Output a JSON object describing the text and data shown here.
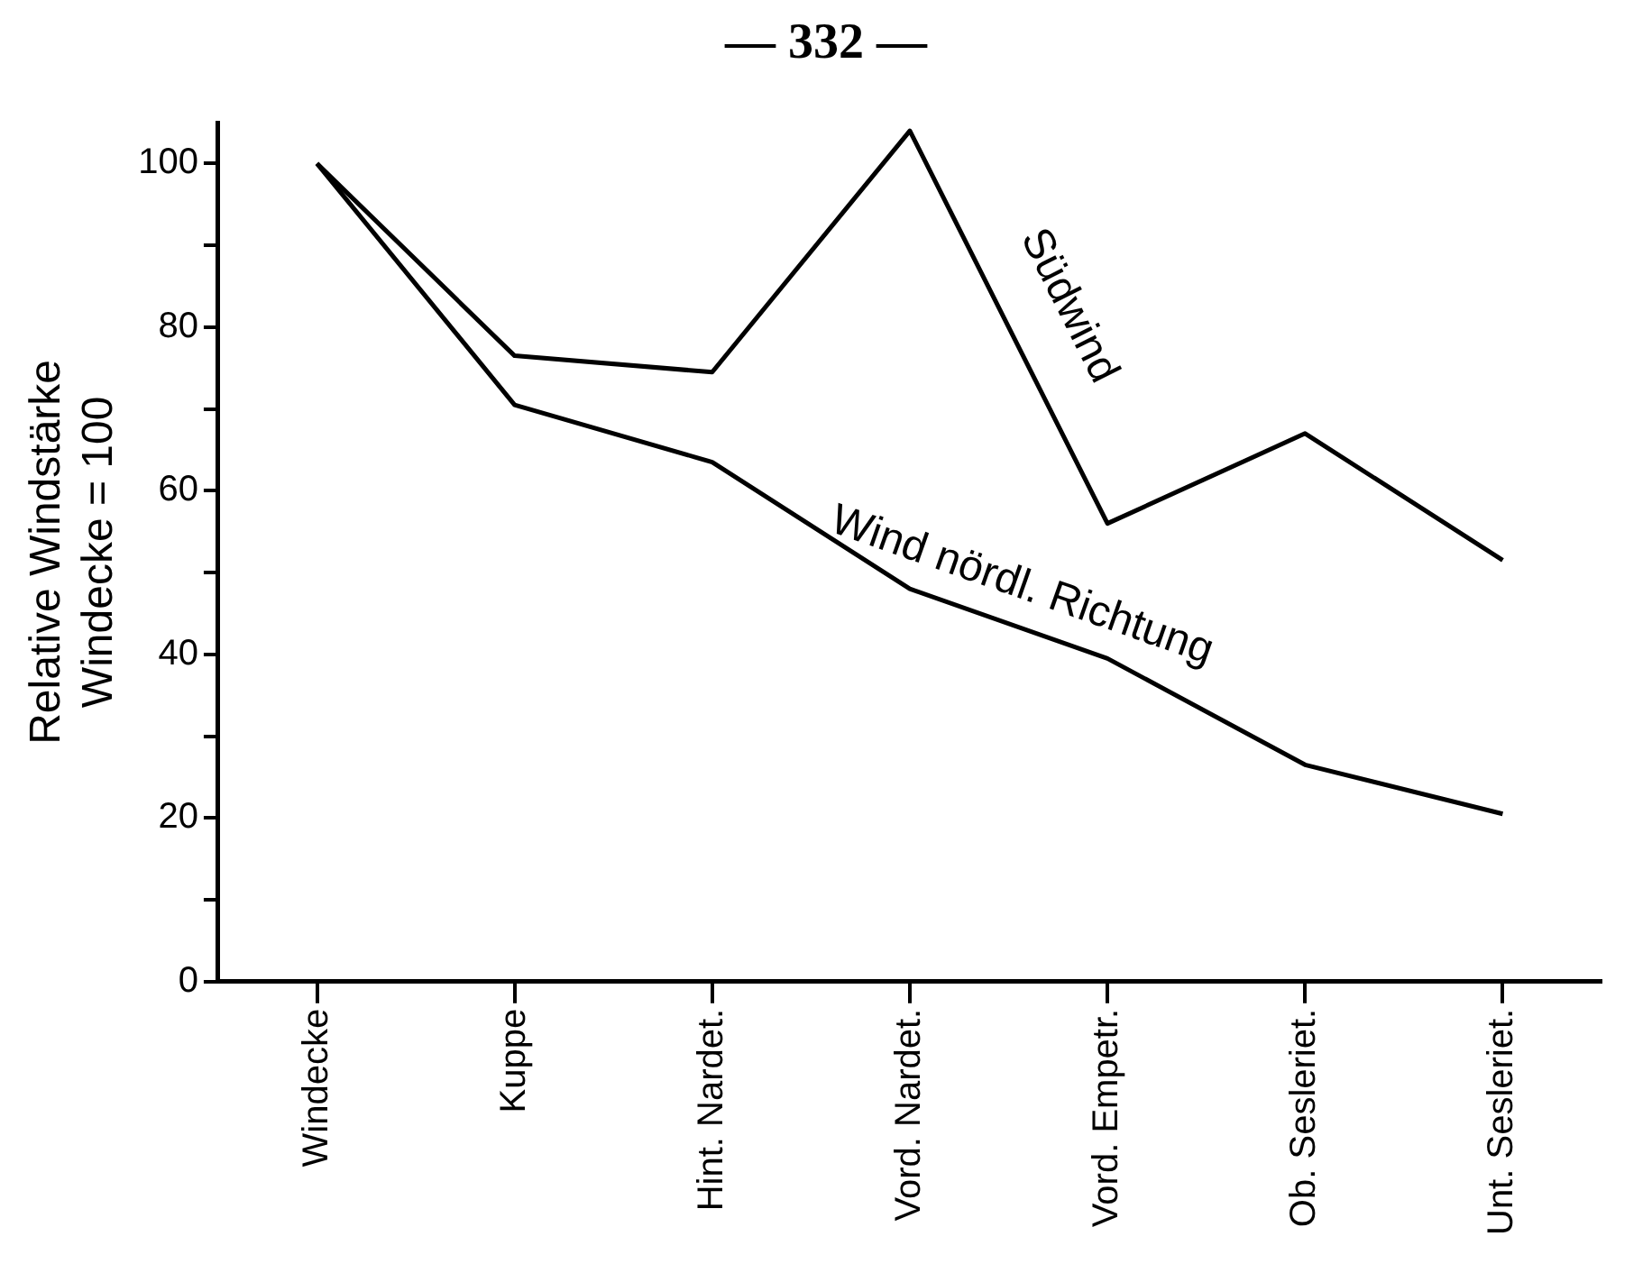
{
  "chart_data": {
    "type": "line",
    "ylabel": "Relative Windstärke\nWindecke = 100",
    "annotations": [
      "— 332 —"
    ],
    "categories": [
      "Windecke",
      "Kuppe",
      "Hint. Nardet.",
      "Vord. Nardet.",
      "Vord. Empetr.",
      "Ob. Sesleriet.",
      "Unt. Sesleriet."
    ],
    "series": [
      {
        "name": "Südwind",
        "color": "#000000",
        "values": [
          100,
          76.5,
          74.5,
          104,
          56,
          67,
          51.5
        ]
      },
      {
        "name": "Wind nördl. Richtung",
        "color": "#000000",
        "values": [
          100,
          70.5,
          63.5,
          48,
          39.5,
          26.5,
          20.5
        ]
      }
    ],
    "ylim": [
      0,
      105
    ],
    "yticks": [
      0,
      {
        "value": 10,
        "label": null
      },
      20,
      {
        "value": 30,
        "label": null
      },
      40,
      {
        "value": 50,
        "label": null
      },
      60,
      {
        "value": 70,
        "label": null
      },
      80,
      {
        "value": 90,
        "label": null
      },
      100
    ],
    "grid": false,
    "legend": false,
    "marker": "none",
    "line_style": "solid"
  }
}
